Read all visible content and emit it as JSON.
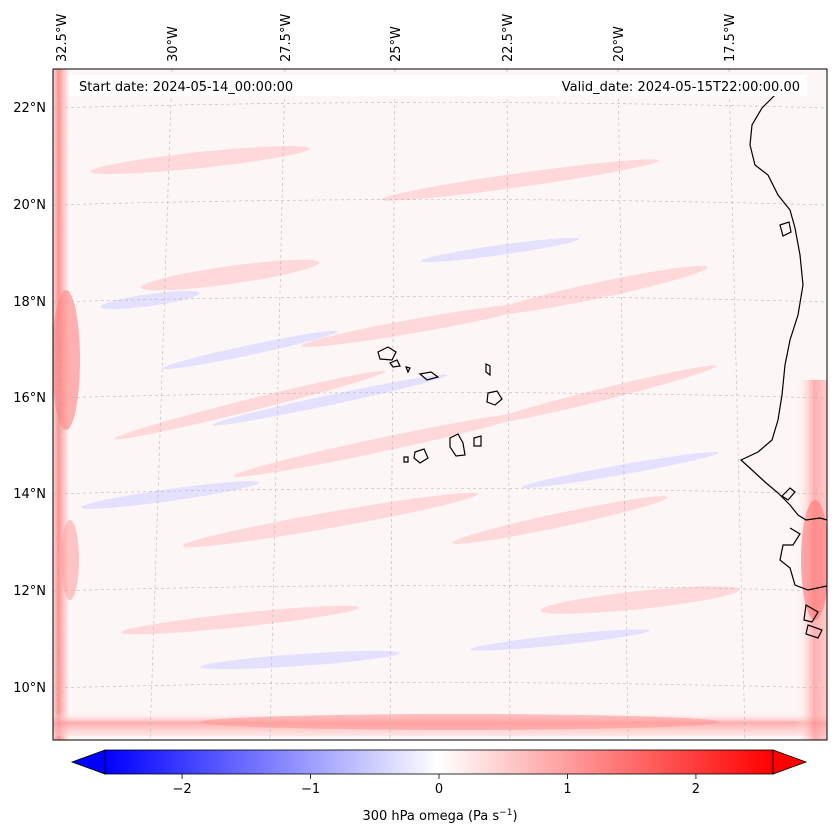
{
  "map": {
    "start_date": "Start date: 2024-05-14_00:00:00",
    "valid_date": "Valid_date: 2024-05-15T22:00:00.00",
    "lon_labels": [
      "32.5°W",
      "30°W",
      "27.5°W",
      "25°W",
      "22.5°W",
      "20°W",
      "17.5°W"
    ],
    "lat_labels": [
      "22°N",
      "20°N",
      "18°N",
      "16°N",
      "14°N",
      "12°N",
      "10°N"
    ]
  },
  "colorbar": {
    "label_main": "300 hPa omega (Pa s",
    "label_sup": "−1",
    "label_end": ")",
    "ticks": [
      "−2",
      "−1",
      "0",
      "1",
      "2"
    ],
    "min": -2.6,
    "max": 2.6,
    "tick_values": [
      -2,
      -1,
      0,
      1,
      2
    ],
    "colors": {
      "negative": "#0000ff",
      "zero": "#ffffff",
      "positive": "#ff0000"
    }
  }
}
